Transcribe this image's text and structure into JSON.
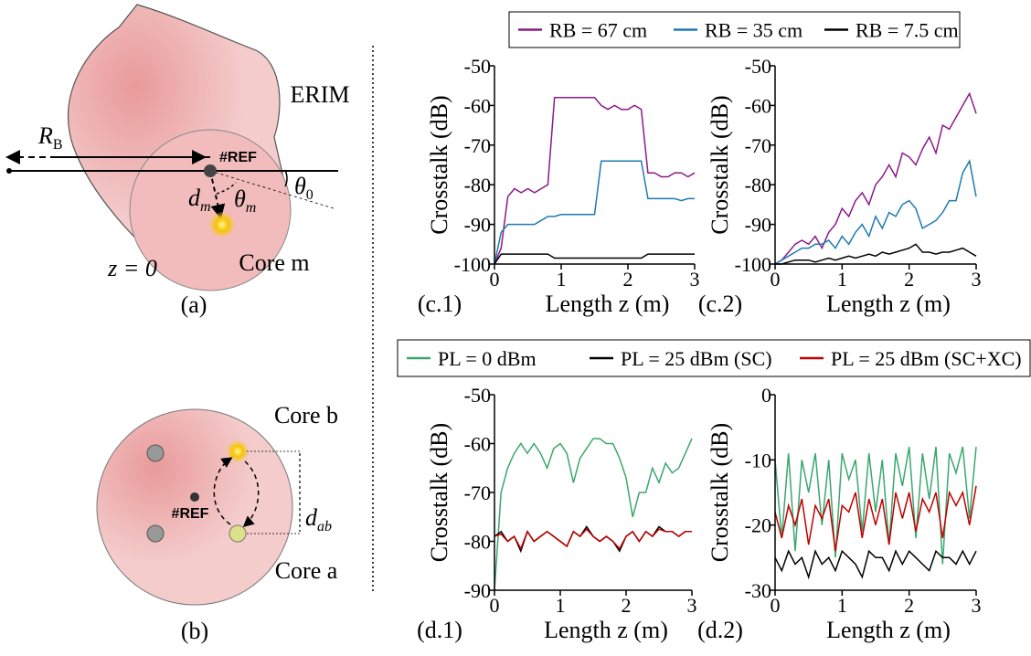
{
  "diagram_a": {
    "erim": "ERIM",
    "rb": {
      "main": "R",
      "sub": "B"
    },
    "ref": "#REF",
    "dm": {
      "main": "d",
      "sub": "m"
    },
    "theta_m": {
      "main": "θ",
      "sub": "m"
    },
    "theta_0": {
      "main": "θ",
      "sub": "0"
    },
    "z": "z = 0",
    "core": "Core m",
    "label": "(a)"
  },
  "diagram_b": {
    "core_b": "Core b",
    "dab": {
      "main": "d",
      "sub": "ab"
    },
    "ref": "#REF",
    "core_a": "Core a",
    "label": "(b)"
  },
  "chart_data": [
    {
      "type": "line",
      "label": "(c.1)",
      "xlabel": "Length z (m)",
      "ylabel": "Crosstalk (dB)",
      "x": [
        0,
        0.1,
        0.2,
        0.3,
        0.4,
        0.5,
        0.6,
        0.7,
        0.8,
        0.9,
        1,
        1.1,
        1.2,
        1.3,
        1.4,
        1.5,
        1.6,
        1.7,
        1.8,
        1.9,
        2,
        2.1,
        2.2,
        2.3,
        2.4,
        2.5,
        2.6,
        2.7,
        2.8,
        2.9,
        3
      ],
      "xlim": [
        0,
        3
      ],
      "xticks": [
        0,
        1,
        2,
        3
      ],
      "ylim": [
        -100,
        -50
      ],
      "yticks": [
        -100,
        -90,
        -80,
        -70,
        -60,
        -50
      ],
      "series": [
        {
          "name": "RB = 67 cm",
          "color": "#8b1a89",
          "values": [
            -100,
            -96,
            -83,
            -81,
            -82,
            -81,
            -82,
            -81,
            -80,
            -58,
            -58,
            -58,
            -58,
            -58,
            -58,
            -58,
            -60,
            -61,
            -60,
            -61,
            -61,
            -60,
            -61,
            -77,
            -77,
            -78,
            -78,
            -77,
            -77,
            -78,
            -77
          ]
        },
        {
          "name": "RB = 35 cm",
          "color": "#1f7ab0",
          "values": [
            -100,
            -92,
            -90,
            -90,
            -90,
            -90,
            -90,
            -89,
            -88,
            -88,
            -87.5,
            -87.5,
            -87.5,
            -87.5,
            -87.5,
            -87.5,
            -74,
            -74,
            -74,
            -74,
            -74,
            -74,
            -74,
            -83.5,
            -83.5,
            -83.5,
            -83.5,
            -83.5,
            -84,
            -83.5,
            -83.5
          ]
        },
        {
          "name": "RB = 7.5 cm",
          "color": "#000000",
          "values": [
            -100,
            -97.5,
            -97.5,
            -97.5,
            -97.5,
            -97.5,
            -97.5,
            -97.5,
            -97.5,
            -98.5,
            -98.5,
            -98.5,
            -98.5,
            -98.5,
            -98.5,
            -98.5,
            -98.5,
            -98.5,
            -98.5,
            -98.5,
            -98.5,
            -98.5,
            -98.5,
            -97.5,
            -97.5,
            -97.5,
            -97.5,
            -97.5,
            -97.5,
            -97.5,
            -97.5
          ]
        }
      ]
    },
    {
      "type": "line",
      "label": "(c.2)",
      "xlabel": "Length z (m)",
      "ylabel": "Crosstalk (dB)",
      "x": [
        0,
        0.1,
        0.2,
        0.3,
        0.4,
        0.5,
        0.6,
        0.7,
        0.8,
        0.9,
        1,
        1.1,
        1.2,
        1.3,
        1.4,
        1.5,
        1.6,
        1.7,
        1.8,
        1.9,
        2,
        2.1,
        2.2,
        2.3,
        2.4,
        2.5,
        2.6,
        2.7,
        2.8,
        2.9,
        3
      ],
      "xlim": [
        0,
        3
      ],
      "xticks": [
        0,
        1,
        2,
        3
      ],
      "ylim": [
        -100,
        -50
      ],
      "yticks": [
        -100,
        -90,
        -80,
        -70,
        -60,
        -50
      ],
      "series": [
        {
          "color": "#8b1a89",
          "values": [
            -100,
            -99,
            -97,
            -95,
            -94,
            -95,
            -93,
            -96,
            -92,
            -90,
            -86,
            -88,
            -84,
            -82,
            -85,
            -80,
            -78,
            -75,
            -78,
            -72,
            -73,
            -75,
            -71,
            -68,
            -72,
            -65,
            -66,
            -63,
            -60,
            -57,
            -62
          ]
        },
        {
          "color": "#1f7ab0",
          "values": [
            -100,
            -99,
            -98,
            -97,
            -96,
            -96,
            -95,
            -95,
            -94,
            -96,
            -93,
            -95,
            -92,
            -90,
            -93,
            -88,
            -91,
            -87,
            -88,
            -85,
            -84,
            -86,
            -91,
            -90,
            -89,
            -87,
            -84,
            -84,
            -77,
            -74,
            -83
          ]
        },
        {
          "color": "#000000",
          "values": [
            -100,
            -100,
            -99.5,
            -99,
            -99,
            -99,
            -99.5,
            -99,
            -98.5,
            -99,
            -98.5,
            -98,
            -98.5,
            -98,
            -97.5,
            -98,
            -97,
            -97.5,
            -97,
            -96.5,
            -96,
            -95,
            -97,
            -97,
            -97.5,
            -97,
            -97,
            -96.5,
            -96,
            -97,
            -98
          ]
        }
      ]
    },
    {
      "type": "line",
      "label": "(d.1)",
      "xlabel": "Length z (m)",
      "ylabel": "Crosstalk (dB)",
      "x": [
        0,
        0.1,
        0.2,
        0.3,
        0.4,
        0.5,
        0.6,
        0.7,
        0.8,
        0.9,
        1,
        1.1,
        1.2,
        1.3,
        1.4,
        1.5,
        1.6,
        1.7,
        1.8,
        1.9,
        2,
        2.1,
        2.2,
        2.3,
        2.4,
        2.5,
        2.6,
        2.7,
        2.8,
        2.9,
        3
      ],
      "xlim": [
        0,
        3
      ],
      "xticks": [
        0,
        1,
        2,
        3
      ],
      "ylim": [
        -90,
        -50
      ],
      "yticks": [
        -90,
        -80,
        -70,
        -60,
        -50
      ],
      "series": [
        {
          "name": "PL = 0 dBm",
          "color": "#3aa76d",
          "values": [
            -90,
            -70,
            -65,
            -62,
            -60,
            -62,
            -60,
            -62,
            -65,
            -61,
            -60,
            -62,
            -68,
            -63,
            -61,
            -59,
            -59,
            -60,
            -60,
            -63,
            -67,
            -75,
            -70,
            -70,
            -65,
            -68,
            -64,
            -66,
            -65,
            -62,
            -59
          ]
        },
        {
          "name": "PL = 25 dBm (SC)",
          "color": "#000000",
          "values": [
            -79,
            -78,
            -80,
            -79,
            -82,
            -78,
            -80,
            -79,
            -78,
            -79,
            -80,
            -81,
            -78,
            -79,
            -77,
            -79,
            -80,
            -79,
            -80,
            -82,
            -79,
            -78,
            -80,
            -78,
            -79,
            -77,
            -78,
            -78,
            -79,
            -78,
            -78
          ]
        },
        {
          "name": "PL = 25 dBm (SC+XC)",
          "color": "#c00000",
          "values": [
            -79,
            -78.5,
            -80,
            -79,
            -81.5,
            -78,
            -80,
            -79,
            -78,
            -79,
            -80,
            -81,
            -78,
            -79,
            -77.5,
            -79,
            -80,
            -79,
            -80,
            -81.5,
            -79,
            -78,
            -80,
            -78,
            -79,
            -77.5,
            -78,
            -78,
            -79,
            -78,
            -78
          ]
        }
      ]
    },
    {
      "type": "line",
      "label": "(d.2)",
      "xlabel": "Length z (m)",
      "ylabel": "Crosstalk (dB)",
      "x": [
        0,
        0.1,
        0.2,
        0.3,
        0.4,
        0.5,
        0.6,
        0.7,
        0.8,
        0.9,
        1,
        1.1,
        1.2,
        1.3,
        1.4,
        1.5,
        1.6,
        1.7,
        1.8,
        1.9,
        2,
        2.1,
        2.2,
        2.3,
        2.4,
        2.5,
        2.6,
        2.7,
        2.8,
        2.9,
        3
      ],
      "xlim": [
        0,
        3
      ],
      "xticks": [
        0,
        1,
        2,
        3
      ],
      "ylim": [
        -30,
        0
      ],
      "yticks": [
        -30,
        -20,
        -10,
        0
      ],
      "series": [
        {
          "color": "#3aa76d",
          "values": [
            -10,
            -22,
            -9,
            -24,
            -10,
            -15,
            -9,
            -20,
            -10,
            -25,
            -9,
            -13,
            -10,
            -21,
            -9,
            -18,
            -10,
            -23,
            -9,
            -14,
            -8,
            -22,
            -9,
            -16,
            -8,
            -26,
            -9,
            -12,
            -8,
            -19,
            -8
          ]
        },
        {
          "color": "#c00000",
          "values": [
            -18,
            -22,
            -17,
            -20,
            -16,
            -23,
            -17,
            -19,
            -16,
            -24,
            -17,
            -18,
            -15,
            -22,
            -16,
            -20,
            -16,
            -23,
            -15,
            -19,
            -15,
            -21,
            -16,
            -18,
            -15,
            -22,
            -15,
            -17,
            -15,
            -20,
            -14
          ]
        },
        {
          "color": "#000000",
          "values": [
            -25,
            -27,
            -24,
            -26,
            -25,
            -28,
            -24,
            -26,
            -25,
            -27,
            -24,
            -25,
            -26,
            -28,
            -24,
            -25,
            -25,
            -27,
            -24,
            -26,
            -24,
            -25,
            -26,
            -27,
            -24,
            -25,
            -25,
            -26,
            -24,
            -26,
            -24
          ]
        }
      ]
    }
  ]
}
